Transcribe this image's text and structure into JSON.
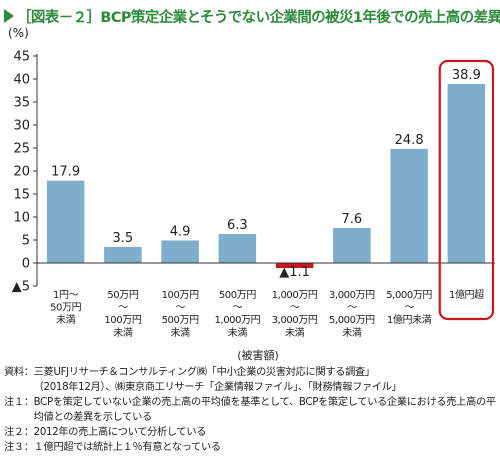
{
  "title": "［図表－２］BCP策定企業とそうでない企業間の被災1年後での売上高の差異",
  "chart_data": {
    "type": "bar",
    "unit_label": "(%)",
    "xlabel": "(被害額)",
    "ylim": [
      -5,
      45
    ],
    "yticks": [
      -5,
      0,
      5,
      10,
      15,
      20,
      25,
      30,
      35,
      40,
      45
    ],
    "ytick_labels": [
      "▲5",
      "0",
      "5",
      "10",
      "15",
      "20",
      "25",
      "30",
      "35",
      "40",
      "45"
    ],
    "categories": [
      [
        "1円～",
        "50万円",
        "未満"
      ],
      [
        "50万円",
        "～",
        "100万円",
        "未満"
      ],
      [
        "100万円",
        "～",
        "500万円",
        "未満"
      ],
      [
        "500万円",
        "～",
        "1,000万円",
        "未満"
      ],
      [
        "1,000万円",
        "～",
        "3,000万円",
        "未満"
      ],
      [
        "3,000万円",
        "～",
        "5,000万円",
        "未満"
      ],
      [
        "5,000万円",
        "～",
        "1億円未満"
      ],
      [
        "1億円超"
      ]
    ],
    "values": [
      17.9,
      3.5,
      4.9,
      6.3,
      -1.1,
      7.6,
      24.8,
      38.9
    ],
    "data_labels": [
      "17.9",
      "3.5",
      "4.9",
      "6.3",
      "▲1.1",
      "7.6",
      "24.8",
      "38.9"
    ],
    "highlight_index": 7,
    "colors": {
      "bar": "#7eaecb",
      "negative": "#c8161d",
      "highlight_frame": "#c8161d",
      "axis": "#333333"
    }
  },
  "notes": [
    {
      "label": "資料：",
      "lines": [
        "三菱UFJリサーチ＆コンサルティング㈱「中小企業の災害対応に関する調査」",
        "（2018年12月）、㈱東京商工リサーチ「企業情報ファイル」、「財務情報ファイル」"
      ]
    },
    {
      "label": "注１：",
      "lines": [
        "BCPを策定していない企業の売上高の平均値を基準として、BCPを策定している企業における売上高の平均値との差異を示している"
      ]
    },
    {
      "label": "注２：",
      "lines": [
        "2012年の売上高について分析している"
      ]
    },
    {
      "label": "注３：",
      "lines": [
        "１億円超では統計上１％有意となっている"
      ]
    }
  ]
}
